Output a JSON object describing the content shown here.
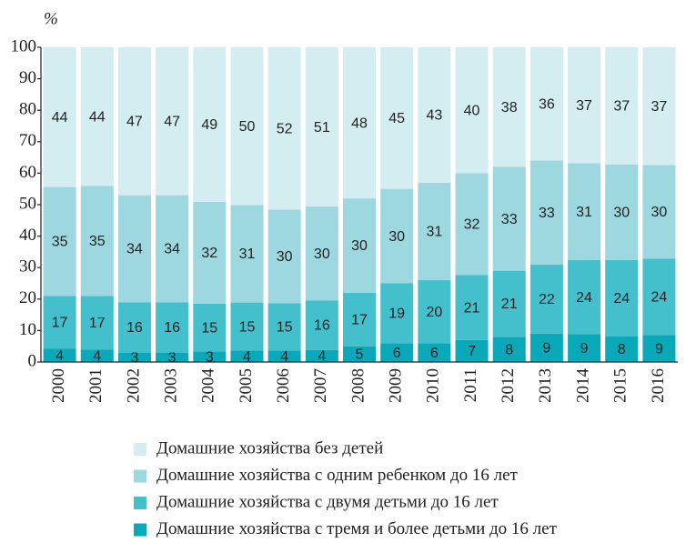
{
  "chart_data": {
    "type": "stacked_bar",
    "y_label": "%",
    "categories": [
      "2000",
      "2001",
      "2002",
      "2003",
      "2004",
      "2005",
      "2006",
      "2007",
      "2008",
      "2009",
      "2010",
      "2011",
      "2012",
      "2013",
      "2014",
      "2015",
      "2016"
    ],
    "series": [
      {
        "name": "Домашние хозяйства с тремя и более детьми до 16 лет",
        "color": "#0aa9b9",
        "values": [
          4.2,
          4,
          3,
          3,
          3.4,
          3.6,
          3.6,
          3.8,
          5,
          6,
          6,
          7,
          8,
          9,
          8.8,
          8.2,
          8.6
        ],
        "value_labels": [
          "4",
          "4",
          "3",
          "3",
          "3",
          "4",
          "4",
          "4",
          "5",
          "6",
          "6",
          "7",
          "8",
          "9",
          "9",
          "8",
          "9"
        ]
      },
      {
        "name": "Домашние хозяйства с двумя детьми до 16 лет",
        "color": "#44bfcc",
        "values": [
          16.8,
          17,
          16,
          16,
          15.1,
          15.3,
          15.1,
          15.8,
          17,
          19,
          20,
          20.6,
          21,
          22,
          23.6,
          24.2,
          24.2
        ],
        "value_labels": [
          "17",
          "17",
          "16",
          "16",
          "15",
          "15",
          "15",
          "16",
          "17",
          "19",
          "20",
          "21",
          "21",
          "22",
          "24",
          "24",
          "24"
        ]
      },
      {
        "name": "Домашние хозяйства с одним ребенком до 16 лет",
        "color": "#9dd8e0",
        "values": [
          34.6,
          35,
          34,
          34,
          32.4,
          31,
          29.7,
          29.8,
          30,
          30,
          31,
          32.4,
          33,
          33,
          30.8,
          30.4,
          29.8
        ],
        "value_labels": [
          "35",
          "35",
          "34",
          "34",
          "32",
          "31",
          "30",
          "30",
          "30",
          "30",
          "31",
          "32",
          "33",
          "33",
          "31",
          "30",
          "30"
        ]
      },
      {
        "name": "Домашние хозяйства без детей",
        "color": "#d3edf1",
        "values": [
          44.4,
          44,
          47,
          47,
          49.1,
          50.1,
          51.6,
          50.6,
          48,
          45,
          43,
          40,
          38,
          36,
          36.8,
          37.2,
          37.4
        ],
        "value_labels": [
          "44",
          "44",
          "47",
          "47",
          "49",
          "50",
          "52",
          "51",
          "48",
          "45",
          "43",
          "40",
          "38",
          "36",
          "37",
          "37",
          "37"
        ]
      }
    ],
    "ylim": [
      0,
      100
    ],
    "yticks": [
      0,
      10,
      20,
      30,
      40,
      50,
      60,
      70,
      80,
      90,
      100
    ],
    "legend": "bottom"
  }
}
